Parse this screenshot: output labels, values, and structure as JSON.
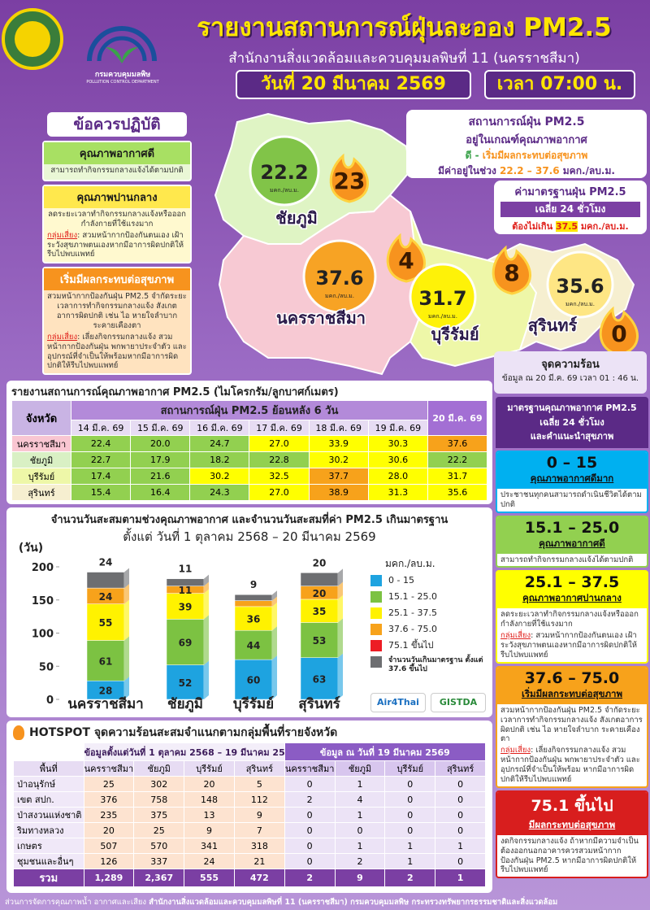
{
  "header": {
    "org_name": "กรมควบคุมมลพิษ",
    "org_name_en": "POLLUTION CONTROL DEPARTMENT",
    "title": "รายงานสถานการณ์ฝุ่นละออง PM2.5",
    "subtitle": "สำนักงานสิ่งแวดล้อมและควบคุมมลพิษที่ 11 (นครราชสีมา)",
    "date": "วันที่ 20 มีนาคม 2569",
    "time": "เวลา 07:00 น."
  },
  "advice": {
    "heading": "ข้อควรปฏิบัติ",
    "items": [
      {
        "title": "คุณภาพอากาศดี",
        "text": "สามารถทำกิจกรรมกลางแจ้งได้ตามปกติ"
      },
      {
        "title": "คุณภาพปานกลาง",
        "text": "ลดระยะเวลาทำกิจกรรมกลางแจ้งหรือออกกำลังกายที่ใช้แรงมาก",
        "risk_label": "กลุ่มเสี่ยง",
        "risk_text": ": สวมหน้ากากป้องกันตนเอง เฝ้าระวังสุขภาพตนเองหากมีอาการผิดปกติให้รีบไปพบแพทย์"
      },
      {
        "title": "เริ่มมีผลกระทบต่อสุขภาพ",
        "text": "สวมหน้ากากป้องกันฝุ่น PM2.5 จำกัดระยะเวลาการทำกิจกรรมกลางแจ้ง สังเกตอาการผิดปกติ เช่น ไอ หายใจลำบาก ระคายเคืองตา",
        "risk_label": "กลุ่มเสี่ยง",
        "risk_text": ": เลี่ยงกิจกรรมกลางแจ้ง สวมหน้ากากป้องกันฝุ่น พกพายาประจำตัว และอุปกรณ์ที่จำเป็นให้พร้อมหากมีอาการผิดปกติให้รีบไปพบแพทย์"
      }
    ]
  },
  "map": {
    "status": {
      "title": "สถานการณ์ฝุ่น PM2.5",
      "line2": "อยู่ในเกณฑ์คุณภาพอากาศ",
      "from_level": "ดี",
      "dash": " - ",
      "to_level": "เริ่มมีผลกระทบต่อสุขภาพ",
      "range_label": "มีค่าอยู่ในช่วง",
      "min": "22.2",
      "range_dash": "–",
      "max": "37.6",
      "unit": "มคก./ลบ.ม."
    },
    "standard": {
      "title": "ค่ามาตรฐานฝุ่น PM2.5",
      "period": "เฉลี่ย 24 ชั่วโมง",
      "limit_label": "ต้องไม่เกิน",
      "limit": "37.5",
      "unit": "มคก./ลบ.ม."
    },
    "unit": "มคก./ลบ.ม.",
    "provinces": [
      {
        "name": "ชัยภูมิ",
        "pm25": "22.2",
        "hotspots": "23"
      },
      {
        "name": "นครราชสีมา",
        "pm25": "37.6",
        "hotspots": "4"
      },
      {
        "name": "บุรีรัมย์",
        "pm25": "31.7",
        "hotspots": "8"
      },
      {
        "name": "สุรินทร์",
        "pm25": "35.6",
        "hotspots": "0"
      }
    ],
    "hotspot_note": {
      "title": "จุดความร้อน",
      "text": "ข้อมูล ณ 20 มี.ค. 69 เวลา 01 : 46 น."
    }
  },
  "aq_table": {
    "title": "รายงานสถานการณ์คุณภาพอากาศ PM2.5 (ไมโครกรัม/ลูกบาศก์เมตร)",
    "province_header": "จังหวัด",
    "history_header": "สถานการณ์ฝุ่น PM2.5 ย้อนหลัง 6 วัน",
    "dates": [
      "14 มี.ค. 69",
      "15 มี.ค. 69",
      "16 มี.ค. 69",
      "17 มี.ค. 69",
      "18 มี.ค. 69",
      "19 มี.ค. 69",
      "20 มี.ค. 69"
    ],
    "rows": [
      {
        "province": "นครราชสีมา",
        "values": [
          "22.4",
          "20.0",
          "24.7",
          "27.0",
          "33.9",
          "30.3",
          "37.6"
        ],
        "colors": [
          "#92d050",
          "#92d050",
          "#92d050",
          "#ffff00",
          "#ffff00",
          "#ffff00",
          "#f7a21b"
        ]
      },
      {
        "province": "ชัยภูมิ",
        "values": [
          "22.7",
          "17.9",
          "18.2",
          "22.8",
          "30.2",
          "30.6",
          "22.2"
        ],
        "colors": [
          "#92d050",
          "#92d050",
          "#92d050",
          "#92d050",
          "#ffff00",
          "#ffff00",
          "#92d050"
        ]
      },
      {
        "province": "บุรีรัมย์",
        "values": [
          "17.4",
          "21.6",
          "30.2",
          "32.5",
          "37.7",
          "28.0",
          "31.7"
        ],
        "colors": [
          "#92d050",
          "#92d050",
          "#ffff00",
          "#ffff00",
          "#f7a21b",
          "#ffff00",
          "#ffff00"
        ]
      },
      {
        "province": "สุรินทร์",
        "values": [
          "15.4",
          "16.4",
          "24.3",
          "27.0",
          "38.9",
          "31.3",
          "35.6"
        ],
        "colors": [
          "#92d050",
          "#92d050",
          "#92d050",
          "#ffff00",
          "#f7a21b",
          "#ffff00",
          "#ffff00"
        ]
      }
    ]
  },
  "chart_data": {
    "type": "bar",
    "stacked": true,
    "title": "จำนวนวันสะสมตามช่วงคุณภาพอากาศ และจำนวนวันสะสมที่ค่า PM2.5 เกินมาตรฐาน",
    "subtitle": "ตั้งแต่ วันที่ 1 ตุลาคม 2568 – 20 มีนาคม 2569",
    "y_label": "(วัน)",
    "legend_title": "มคก./ลบ.ม.",
    "categories": [
      "นครราชสีมา",
      "ชัยภูมิ",
      "บุรีรัมย์",
      "สุรินทร์"
    ],
    "ylim": [
      0,
      200
    ],
    "yticks": [
      0,
      50,
      100,
      150,
      200
    ],
    "series": [
      {
        "name": "0 - 15",
        "color": "#1ea3e0",
        "values": [
          28,
          52,
          60,
          63
        ]
      },
      {
        "name": "15.1 - 25.0",
        "color": "#7cc242",
        "values": [
          61,
          69,
          44,
          53
        ]
      },
      {
        "name": "25.1 - 37.5",
        "color": "#fff200",
        "values": [
          55,
          39,
          36,
          35
        ]
      },
      {
        "name": "37.6 - 75.0",
        "color": "#f7a21b",
        "values": [
          24,
          11,
          9,
          20
        ]
      },
      {
        "name": "75.1 ขึ้นไป",
        "color": "#ed1c24",
        "values": [
          0,
          0,
          0,
          0
        ]
      },
      {
        "name": "จำนวนวันเกินมาตรฐาน ตั้งแต่ 37.6 ขึ้นไป",
        "color": "#6d6e71",
        "values": [
          24,
          11,
          9,
          20
        ]
      }
    ],
    "logos": [
      "Air4Thai",
      "GISTDA"
    ]
  },
  "hotspot": {
    "title": "HOTSPOT จุดความร้อนสะสมจำแนกตามกลุ่มพื้นที่รายจังหวัด",
    "period_header": "ข้อมูลตั้งแต่วันที่ 1 ตุลาคม 2568 – 19 มีนาคม 2569",
    "day_header": "ข้อมูล ณ วันที่ 19 มีนาคม 2569",
    "area_header": "พื้นที่",
    "provinces": [
      "นครราชสีมา",
      "ชัยภูมิ",
      "บุรีรัมย์",
      "สุรินทร์"
    ],
    "rows": [
      {
        "area": "ป่าอนุรักษ์",
        "cumulative": [
          "25",
          "302",
          "20",
          "5"
        ],
        "day": [
          "0",
          "1",
          "0",
          "0"
        ]
      },
      {
        "area": "เขต สปก.",
        "cumulative": [
          "376",
          "758",
          "148",
          "112"
        ],
        "day": [
          "2",
          "4",
          "0",
          "0"
        ]
      },
      {
        "area": "ป่าสงวนแห่งชาติ",
        "cumulative": [
          "235",
          "375",
          "13",
          "9"
        ],
        "day": [
          "0",
          "1",
          "0",
          "0"
        ]
      },
      {
        "area": "ริมทางหลวง",
        "cumulative": [
          "20",
          "25",
          "9",
          "7"
        ],
        "day": [
          "0",
          "0",
          "0",
          "0"
        ]
      },
      {
        "area": "เกษตร",
        "cumulative": [
          "507",
          "570",
          "341",
          "318"
        ],
        "day": [
          "0",
          "1",
          "1",
          "1"
        ]
      },
      {
        "area": "ชุมชนและอื่นๆ",
        "cumulative": [
          "126",
          "337",
          "24",
          "21"
        ],
        "day": [
          "0",
          "2",
          "1",
          "0"
        ]
      }
    ],
    "total": {
      "label": "รวม",
      "cumulative": [
        "1,289",
        "2,367",
        "555",
        "472"
      ],
      "day": [
        "2",
        "9",
        "2",
        "1"
      ]
    }
  },
  "standard_guide": {
    "header": [
      "มาตรฐานคุณภาพอากาศ PM2.5",
      "เฉลี่ย 24 ชั่วโมง",
      "และคำแนะนำสุขภาพ"
    ],
    "levels": [
      {
        "range": "0 – 15",
        "label": "คุณภาพอากาศดีมาก",
        "text": "ประชาชนทุกคนสามารถดำเนินชีวิตได้ตามปกติ"
      },
      {
        "range": "15.1 – 25.0",
        "label": "คุณภาพอากาศดี",
        "text": "สามารถทำกิจกรรมกลางแจ้งได้ตามปกติ"
      },
      {
        "range": "25.1 – 37.5",
        "label": "คุณภาพอากาศปานกลาง",
        "text": "ลดระยะเวลาทำกิจกรรมกลางแจ้งหรือออกกำลังกายที่ใช้แรงมาก",
        "risk_label": "กลุ่มเสี่ยง",
        "risk_text": ": สวมหน้ากากป้องกันตนเอง เฝ้าระวังสุขภาพตนเองหากมีอาการผิดปกติให้รีบไปพบแพทย์"
      },
      {
        "range": "37.6 – 75.0",
        "label": "เริ่มมีผลกระทบต่อสุขภาพ",
        "text": "สวมหน้ากากป้องกันฝุ่น PM2.5 จำกัดระยะเวลาการทำกิจกรรมกลางแจ้ง สังเกตอาการผิดปกติ เช่น ไอ หายใจลำบาก ระคายเคืองตา",
        "risk_label": "กลุ่มเสี่ยง",
        "risk_text": ": เลี่ยงกิจกรรมกลางแจ้ง สวมหน้ากากป้องกันฝุ่น พกพายาประจำตัว และอุปกรณ์ที่จำเป็นให้พร้อม หากมีอาการผิดปกติให้รีบไปพบแพทย์"
      },
      {
        "range": "75.1 ขึ้นไป",
        "label": "มีผลกระทบต่อสุขภาพ",
        "text": "งดกิจกรรมกลางแจ้ง ถ้าหากมีความจำเป็นต้องออกนอกอาคารควรสวมหน้ากากป้องกันฝุ่น PM2.5 หากมีอาการผิดปกติให้รีบไปพบแพทย์"
      }
    ]
  },
  "footer": {
    "unit": "ส่วนการจัดการคุณภาพน้ำ อากาศและเสียง",
    "org": "สำนักงานสิ่งแวดล้อมและควบคุมมลพิษที่ 11 (นครราชสีมา) กรมควบคุมมลพิษ กระทรวงทรัพยากรธรรมชาติและสิ่งแวดล้อม"
  }
}
